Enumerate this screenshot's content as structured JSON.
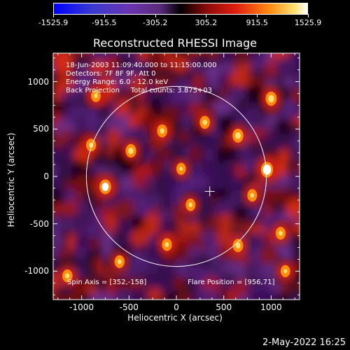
{
  "colorbar": {
    "tick_labels": [
      "-1525.9",
      "-915.5",
      "-305.2",
      "305.2",
      "915.5",
      "1525.9"
    ],
    "min": -1525.9,
    "max": 1525.9
  },
  "plot": {
    "title": "Reconstructed RHESSI Image",
    "info_lines": [
      "18-Jun-2003 11:09:40.000 to 11:15:00.000",
      "Detectors: 7F 8F 9F, Att 0",
      "Energy Range: 6.0 - 12.0 keV",
      "Back Projection     Total counts: 3.875+03"
    ],
    "spin_axis": "Spin Axis = [352,-158]",
    "flare_position": "Flare Position = [956,71]"
  },
  "footer": {
    "timestamp": "2-May-2022 16:25"
  },
  "chart_data": {
    "type": "heatmap",
    "title": "Reconstructed RHESSI Image",
    "xlabel": "Heliocentric X (arcsec)",
    "ylabel": "Heliocentric Y (arcsec)",
    "xlim": [
      -1300,
      1300
    ],
    "ylim": [
      -1300,
      1300
    ],
    "x_ticks": [
      -1000,
      -500,
      0,
      500,
      1000
    ],
    "x_tick_labels": [
      "-1000",
      "-500",
      "0",
      "500",
      "1000"
    ],
    "y_ticks": [
      1000,
      500,
      0,
      -500,
      -1000
    ],
    "y_tick_labels": [
      "1000",
      "500",
      "0",
      "-500",
      "-1000"
    ],
    "solar_limb": {
      "center": [
        0,
        0
      ],
      "radius": 950
    },
    "spin_axis_marker": [
      352,
      -158
    ],
    "flare_position": [
      956,
      71
    ],
    "bright_sources": [
      {
        "x": 956,
        "y": 71,
        "intensity": 1.0
      },
      {
        "x": -750,
        "y": -110,
        "intensity": 0.85
      },
      {
        "x": 650,
        "y": 430,
        "intensity": 0.7
      },
      {
        "x": 1000,
        "y": 820,
        "intensity": 0.75
      },
      {
        "x": -480,
        "y": 270,
        "intensity": 0.65
      },
      {
        "x": -150,
        "y": 480,
        "intensity": 0.55
      },
      {
        "x": 300,
        "y": 570,
        "intensity": 0.55
      },
      {
        "x": 650,
        "y": -730,
        "intensity": 0.6
      },
      {
        "x": -100,
        "y": -720,
        "intensity": 0.5
      },
      {
        "x": -600,
        "y": -900,
        "intensity": 0.5
      },
      {
        "x": -850,
        "y": 850,
        "intensity": 0.45
      },
      {
        "x": 1100,
        "y": -600,
        "intensity": 0.5
      },
      {
        "x": 150,
        "y": -300,
        "intensity": 0.45
      },
      {
        "x": -900,
        "y": 330,
        "intensity": 0.5
      },
      {
        "x": 800,
        "y": -200,
        "intensity": 0.45
      },
      {
        "x": 50,
        "y": 80,
        "intensity": 0.4
      },
      {
        "x": -1150,
        "y": -1050,
        "intensity": 0.55
      },
      {
        "x": 1150,
        "y": -1000,
        "intensity": 0.4
      }
    ]
  }
}
